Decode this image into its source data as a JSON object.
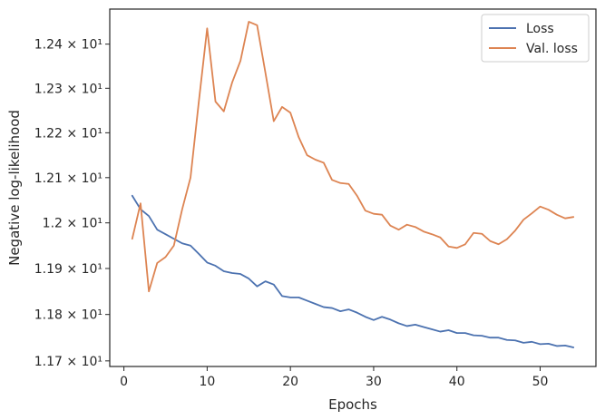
{
  "chart_data": {
    "type": "line",
    "title": "",
    "xlabel": "Epochs",
    "ylabel": "Negative log-likelihood",
    "xlim": [
      -1.7,
      56.7
    ],
    "ylim": [
      11.688,
      12.48
    ],
    "yscale": "log",
    "grid": false,
    "legend_position": "top-right",
    "x_ticks": [
      0,
      10,
      20,
      30,
      40,
      50
    ],
    "x_tick_labels": [
      "0",
      "10",
      "20",
      "30",
      "40",
      "50"
    ],
    "y_ticks": [
      11.7,
      11.8,
      11.9,
      12.0,
      12.1,
      12.2,
      12.3,
      12.4
    ],
    "y_tick_labels": [
      "1.17 × 10¹",
      "1.18 × 10¹",
      "1.19 × 10¹",
      "1.2 × 10¹",
      "1.21 × 10¹",
      "1.22 × 10¹",
      "1.23 × 10¹",
      "1.24 × 10¹"
    ],
    "x": [
      1,
      2,
      3,
      4,
      5,
      6,
      7,
      8,
      9,
      10,
      11,
      12,
      13,
      14,
      15,
      16,
      17,
      18,
      19,
      20,
      21,
      22,
      23,
      24,
      25,
      26,
      27,
      28,
      29,
      30,
      31,
      32,
      33,
      34,
      35,
      36,
      37,
      38,
      39,
      40,
      41,
      42,
      43,
      44,
      45,
      46,
      47,
      48,
      49,
      50,
      51,
      52,
      53,
      54
    ],
    "series": [
      {
        "name": "Loss",
        "color": "#4c72b0",
        "values": [
          12.06,
          12.03,
          12.015,
          11.985,
          11.975,
          11.965,
          11.955,
          11.95,
          11.932,
          11.913,
          11.906,
          11.894,
          11.89,
          11.888,
          11.878,
          11.861,
          11.872,
          11.865,
          11.84,
          11.837,
          11.837,
          11.83,
          11.823,
          11.816,
          11.814,
          11.807,
          11.811,
          11.804,
          11.795,
          11.788,
          11.795,
          11.789,
          11.781,
          11.775,
          11.778,
          11.773,
          11.768,
          11.763,
          11.766,
          11.76,
          11.76,
          11.755,
          11.754,
          11.75,
          11.75,
          11.745,
          11.744,
          11.739,
          11.741,
          11.736,
          11.737,
          11.732,
          11.733,
          11.729
        ]
      },
      {
        "name": "Val. loss",
        "color": "#dd8452",
        "values": [
          11.965,
          12.043,
          11.85,
          11.912,
          11.925,
          11.95,
          12.03,
          12.1,
          12.27,
          12.436,
          12.27,
          12.248,
          12.313,
          12.362,
          12.451,
          12.443,
          12.335,
          12.226,
          12.258,
          12.245,
          12.19,
          12.15,
          12.14,
          12.133,
          12.095,
          12.088,
          12.086,
          12.06,
          12.027,
          12.02,
          12.018,
          11.994,
          11.985,
          11.996,
          11.991,
          11.981,
          11.975,
          11.968,
          11.948,
          11.945,
          11.953,
          11.978,
          11.976,
          11.96,
          11.953,
          11.964,
          11.983,
          12.007,
          12.021,
          12.036,
          12.029,
          12.018,
          12.01,
          12.013
        ]
      }
    ]
  }
}
